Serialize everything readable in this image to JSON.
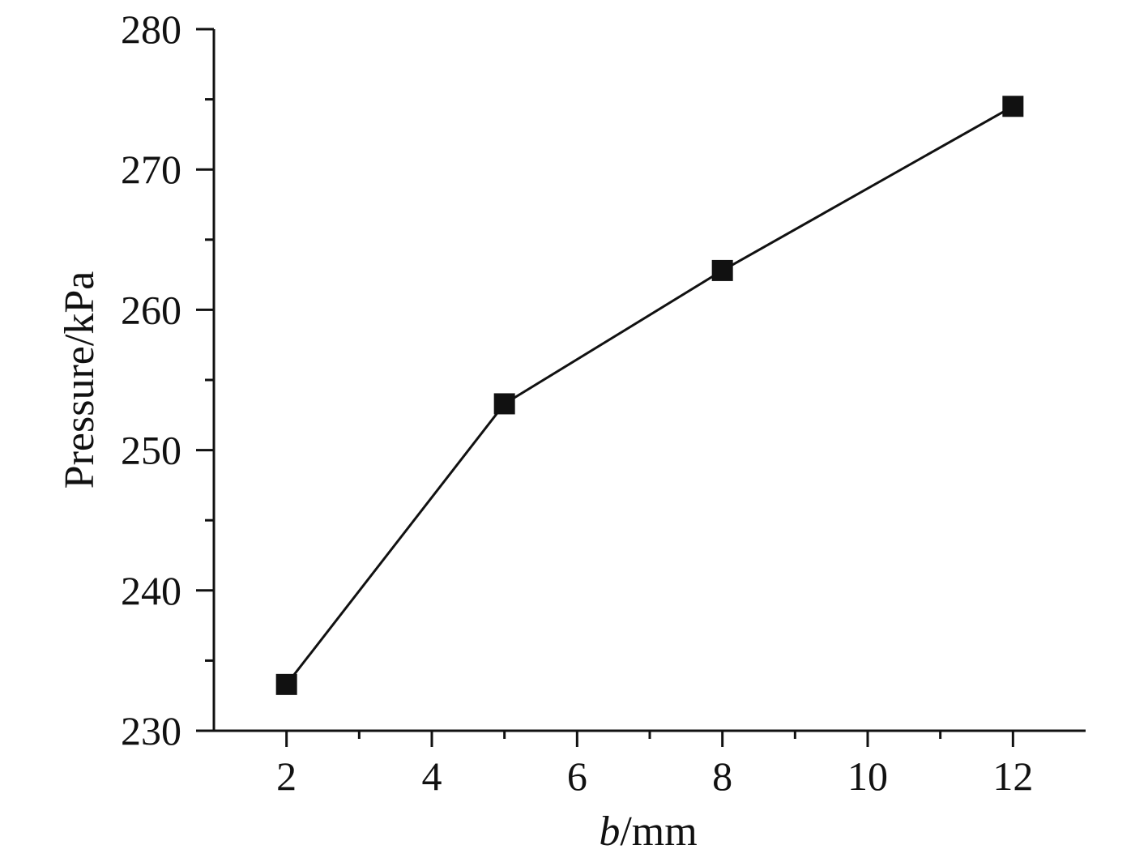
{
  "chart_data": {
    "type": "line",
    "title": "",
    "xlabel_italic": "b",
    "xlabel_unit": "/mm",
    "ylabel": "Pressure/kPa",
    "xlim": [
      1,
      13
    ],
    "ylim": [
      230,
      280
    ],
    "x_ticks": [
      2,
      4,
      6,
      8,
      10,
      12
    ],
    "x_tick_labels": [
      "2",
      "4",
      "6",
      "8",
      "10",
      "12"
    ],
    "x_minor_ticks": [
      3,
      5,
      7,
      9,
      11
    ],
    "y_ticks": [
      230,
      240,
      250,
      260,
      270,
      280
    ],
    "y_tick_labels": [
      "230",
      "240",
      "250",
      "260",
      "270",
      "280"
    ],
    "y_minor_ticks": [
      235,
      245,
      255,
      265,
      275
    ],
    "grid": false,
    "legend": "none",
    "marker": "square",
    "series": [
      {
        "x": [
          2,
          5,
          8,
          12
        ],
        "values": [
          233.3,
          253.3,
          262.8,
          274.5
        ],
        "color": "#111111"
      }
    ]
  }
}
